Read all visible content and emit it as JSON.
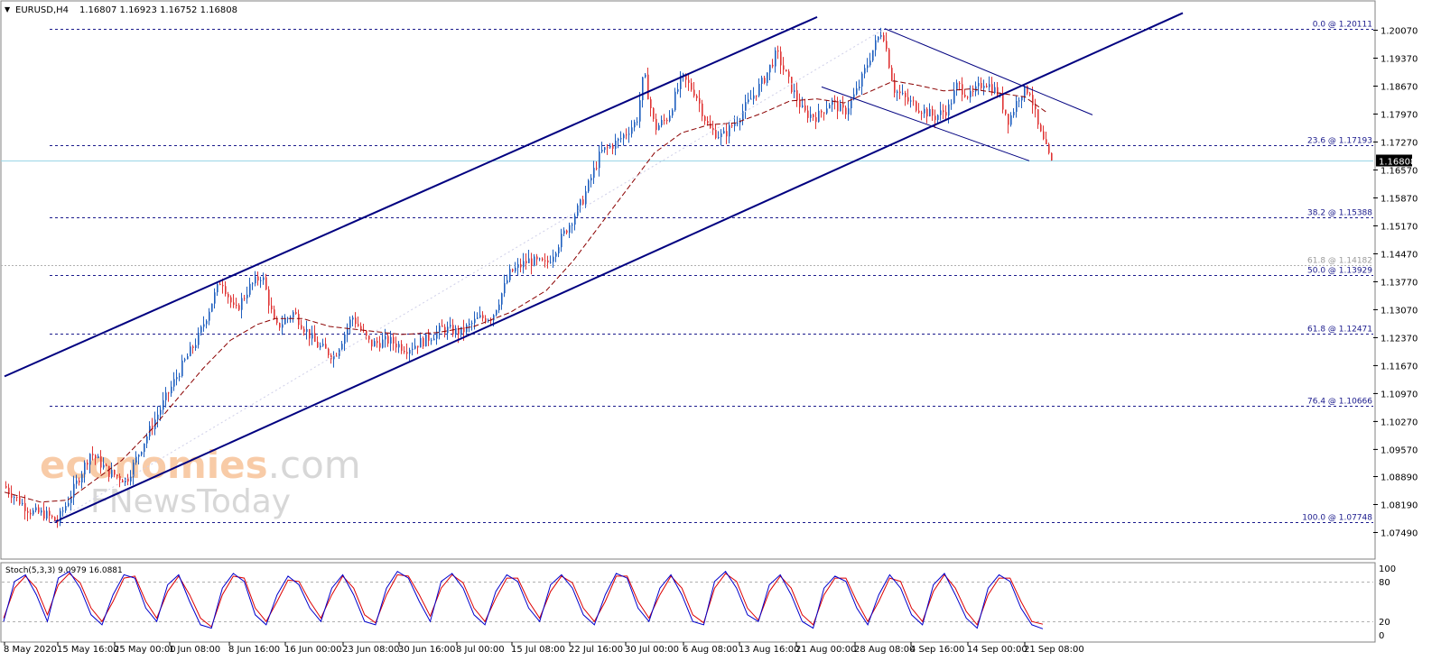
{
  "header": {
    "symbol_label": "EURUSD,H4",
    "ohlc": "1.16807 1.16923 1.16752 1.16808",
    "collapse_glyph": "▼"
  },
  "colors": {
    "bull": "#1f5fbf",
    "bear": "#e03535",
    "channel": "#000080",
    "fib": "#1a1a8c",
    "ma": "#8b0000",
    "current_price_line": "#9ad6e6",
    "stoch_main": "#0000cc",
    "stoch_signal": "#dd0000",
    "watermark_orange": "#f4a261",
    "watermark_gray": "#b8b8b8"
  },
  "watermark": {
    "line1_a": "economies",
    "line1_b": ".com",
    "line2_a": "F",
    "line2_b": "Ne",
    "line2_c": "wsToday"
  },
  "chart_data": {
    "type": "candlestick",
    "symbol": "EURUSD",
    "timeframe": "H4",
    "ylim": [
      1.0749,
      1.2007
    ],
    "y_ticks": [
      "1.20070",
      "1.19370",
      "1.18670",
      "1.17970",
      "1.17270",
      "1.16570",
      "1.15870",
      "1.15170",
      "1.14470",
      "1.13770",
      "1.13070",
      "1.12370",
      "1.11670",
      "1.10970",
      "1.10270",
      "1.09570",
      "1.08890",
      "1.08190",
      "1.07490"
    ],
    "current_price": "1.16808",
    "x_ticks": [
      "8 May 2020",
      "15 May 16:00",
      "25 May 00:00",
      "1 Jun 08:00",
      "8 Jun 16:00",
      "16 Jun 00:00",
      "23 Jun 08:00",
      "30 Jun 16:00",
      "8 Jul 00:00",
      "15 Jul 08:00",
      "22 Jul 16:00",
      "30 Jul 00:00",
      "6 Aug 08:00",
      "13 Aug 16:00",
      "21 Aug 00:00",
      "28 Aug 08:00",
      "4 Sep 16:00",
      "14 Sep 00:00",
      "21 Sep 08:00"
    ],
    "fib_levels": [
      {
        "label": "0.0 @ 1.20111",
        "price": 1.20111
      },
      {
        "label": "23.6 @ 1.17193",
        "price": 1.17193
      },
      {
        "label": "38.2 @ 1.15388",
        "price": 1.15388
      },
      {
        "label": "50.0 @ 1.13929",
        "price": 1.13929
      },
      {
        "label": "61.8 @ 1.12471",
        "price": 1.12471
      },
      {
        "label": "76.4 @ 1.10666",
        "price": 1.10666
      },
      {
        "label": "100.0 @ 1.07748",
        "price": 1.07748
      }
    ],
    "fib_secondary": {
      "label": "61.8 @ 1.14182",
      "price": 1.14182
    },
    "path": [
      [
        0,
        1.0865
      ],
      [
        15,
        1.083
      ],
      [
        30,
        1.08
      ],
      [
        45,
        1.0795
      ],
      [
        58,
        1.0775
      ],
      [
        75,
        1.085
      ],
      [
        95,
        1.095
      ],
      [
        115,
        1.09
      ],
      [
        135,
        1.088
      ],
      [
        155,
        1.098
      ],
      [
        175,
        1.107
      ],
      [
        195,
        1.116
      ],
      [
        215,
        1.124
      ],
      [
        230,
        1.133
      ],
      [
        240,
        1.1385
      ],
      [
        255,
        1.13
      ],
      [
        270,
        1.136
      ],
      [
        285,
        1.1395
      ],
      [
        300,
        1.126
      ],
      [
        320,
        1.13
      ],
      [
        345,
        1.122
      ],
      [
        365,
        1.119
      ],
      [
        385,
        1.129
      ],
      [
        405,
        1.122
      ],
      [
        425,
        1.123
      ],
      [
        445,
        1.121
      ],
      [
        465,
        1.123
      ],
      [
        485,
        1.126
      ],
      [
        505,
        1.125
      ],
      [
        525,
        1.1285
      ],
      [
        540,
        1.129
      ],
      [
        560,
        1.14
      ],
      [
        580,
        1.143
      ],
      [
        600,
        1.142
      ],
      [
        620,
        1.15
      ],
      [
        640,
        1.158
      ],
      [
        660,
        1.17
      ],
      [
        680,
        1.173
      ],
      [
        700,
        1.178
      ],
      [
        708,
        1.19
      ],
      [
        720,
        1.176
      ],
      [
        735,
        1.179
      ],
      [
        750,
        1.189
      ],
      [
        765,
        1.185
      ],
      [
        780,
        1.176
      ],
      [
        795,
        1.174
      ],
      [
        810,
        1.178
      ],
      [
        825,
        1.183
      ],
      [
        840,
        1.188
      ],
      [
        855,
        1.195
      ],
      [
        870,
        1.187
      ],
      [
        885,
        1.18
      ],
      [
        900,
        1.179
      ],
      [
        915,
        1.183
      ],
      [
        930,
        1.18
      ],
      [
        945,
        1.186
      ],
      [
        960,
        1.195
      ],
      [
        972,
        1.2011
      ],
      [
        985,
        1.186
      ],
      [
        1000,
        1.183
      ],
      [
        1015,
        1.181
      ],
      [
        1030,
        1.179
      ],
      [
        1045,
        1.181
      ],
      [
        1055,
        1.187
      ],
      [
        1070,
        1.184
      ],
      [
        1085,
        1.188
      ],
      [
        1100,
        1.185
      ],
      [
        1112,
        1.178
      ],
      [
        1125,
        1.185
      ],
      [
        1135,
        1.186
      ],
      [
        1145,
        1.176
      ],
      [
        1158,
        1.16808
      ]
    ],
    "ma_path": [
      [
        0,
        1.085
      ],
      [
        40,
        1.0825
      ],
      [
        70,
        1.083
      ],
      [
        100,
        1.088
      ],
      [
        130,
        1.093
      ],
      [
        160,
        1.1
      ],
      [
        190,
        1.108
      ],
      [
        220,
        1.116
      ],
      [
        250,
        1.123
      ],
      [
        280,
        1.127
      ],
      [
        300,
        1.1285
      ],
      [
        330,
        1.1285
      ],
      [
        360,
        1.1265
      ],
      [
        400,
        1.1255
      ],
      [
        440,
        1.1245
      ],
      [
        480,
        1.125
      ],
      [
        520,
        1.1265
      ],
      [
        560,
        1.13
      ],
      [
        600,
        1.1355
      ],
      [
        630,
        1.143
      ],
      [
        660,
        1.152
      ],
      [
        690,
        1.161
      ],
      [
        720,
        1.17
      ],
      [
        750,
        1.175
      ],
      [
        780,
        1.177
      ],
      [
        810,
        1.1775
      ],
      [
        840,
        1.18
      ],
      [
        870,
        1.183
      ],
      [
        900,
        1.1835
      ],
      [
        930,
        1.1825
      ],
      [
        960,
        1.1855
      ],
      [
        985,
        1.188
      ],
      [
        1010,
        1.187
      ],
      [
        1040,
        1.1855
      ],
      [
        1070,
        1.186
      ],
      [
        1100,
        1.185
      ],
      [
        1130,
        1.184
      ],
      [
        1155,
        1.18
      ]
    ],
    "channel_upper": [
      [
        0,
        1.114
      ],
      [
        900,
        1.204
      ]
    ],
    "channel_lower": [
      [
        55,
        1.0775
      ],
      [
        1305,
        1.205
      ]
    ],
    "channel_mid": [
      [
        55,
        1.0775
      ],
      [
        975,
        1.2011
      ]
    ],
    "down_channel_upper": [
      [
        975,
        1.2011
      ],
      [
        1205,
        1.1795
      ]
    ],
    "down_channel_lower": [
      [
        905,
        1.1865
      ],
      [
        1135,
        1.168
      ]
    ],
    "stochastic": {
      "label": "Stoch(5,3,3) 9.0979 16.0881",
      "ylim": [
        0,
        100
      ],
      "y_ticks": [
        "100",
        "80",
        "20",
        "0"
      ],
      "levels": [
        20,
        80
      ],
      "main": [
        20,
        80,
        90,
        60,
        20,
        85,
        95,
        70,
        30,
        15,
        60,
        90,
        85,
        40,
        20,
        75,
        90,
        50,
        15,
        10,
        70,
        92,
        80,
        30,
        15,
        60,
        88,
        75,
        40,
        20,
        70,
        90,
        60,
        20,
        15,
        70,
        95,
        85,
        50,
        20,
        80,
        92,
        70,
        30,
        15,
        65,
        90,
        80,
        40,
        20,
        75,
        90,
        70,
        30,
        15,
        60,
        92,
        85,
        40,
        20,
        70,
        90,
        60,
        20,
        15,
        80,
        95,
        70,
        30,
        20,
        75,
        90,
        60,
        20,
        10,
        70,
        88,
        80,
        40,
        15,
        60,
        90,
        70,
        30,
        15,
        75,
        92,
        60,
        25,
        10,
        70,
        90,
        80,
        40,
        15,
        9
      ],
      "signal": [
        25,
        70,
        88,
        70,
        30,
        75,
        92,
        78,
        40,
        20,
        50,
        85,
        88,
        50,
        25,
        65,
        88,
        60,
        25,
        12,
        60,
        88,
        85,
        40,
        20,
        50,
        82,
        80,
        50,
        25,
        60,
        88,
        70,
        30,
        18,
        60,
        90,
        88,
        60,
        28,
        70,
        90,
        78,
        40,
        20,
        55,
        85,
        85,
        50,
        25,
        65,
        88,
        78,
        40,
        20,
        50,
        88,
        88,
        50,
        25,
        60,
        88,
        70,
        30,
        18,
        70,
        92,
        80,
        40,
        22,
        65,
        88,
        70,
        30,
        15,
        60,
        85,
        85,
        50,
        20,
        50,
        85,
        80,
        40,
        20,
        65,
        90,
        70,
        35,
        15,
        60,
        85,
        85,
        50,
        20,
        16
      ]
    }
  }
}
